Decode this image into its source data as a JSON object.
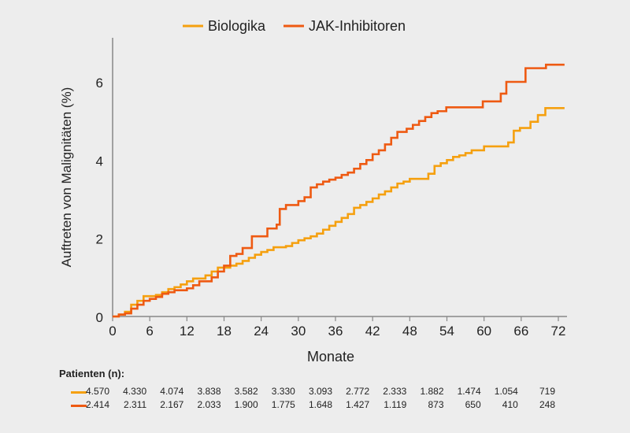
{
  "chart_data": {
    "type": "line",
    "step": true,
    "xlabel": "Monate",
    "ylabel": "Auftreten von Malignitäten (%)",
    "xlim": [
      0,
      72
    ],
    "ylim": [
      0,
      7
    ],
    "xticks": [
      0,
      6,
      12,
      18,
      24,
      30,
      36,
      42,
      48,
      54,
      60,
      66,
      72
    ],
    "yticks": [
      0,
      2,
      4,
      6
    ],
    "grid": false,
    "legend": "top-center",
    "series": [
      {
        "name": "Biologika",
        "color": "#F5A00F",
        "points": [
          [
            0,
            0
          ],
          [
            1,
            0.05
          ],
          [
            2,
            0.12
          ],
          [
            3,
            0.3
          ],
          [
            4,
            0.4
          ],
          [
            5,
            0.52
          ],
          [
            7,
            0.55
          ],
          [
            8,
            0.62
          ],
          [
            9,
            0.7
          ],
          [
            10,
            0.75
          ],
          [
            11,
            0.82
          ],
          [
            12,
            0.9
          ],
          [
            13,
            0.97
          ],
          [
            15,
            1.05
          ],
          [
            16,
            1.15
          ],
          [
            17,
            1.25
          ],
          [
            19,
            1.3
          ],
          [
            20,
            1.35
          ],
          [
            21,
            1.42
          ],
          [
            22,
            1.5
          ],
          [
            23,
            1.58
          ],
          [
            24,
            1.65
          ],
          [
            25,
            1.7
          ],
          [
            26,
            1.77
          ],
          [
            28,
            1.8
          ],
          [
            29,
            1.88
          ],
          [
            30,
            1.95
          ],
          [
            31,
            2.0
          ],
          [
            32,
            2.05
          ],
          [
            33,
            2.12
          ],
          [
            34,
            2.22
          ],
          [
            35,
            2.32
          ],
          [
            36,
            2.42
          ],
          [
            37,
            2.52
          ],
          [
            38,
            2.62
          ],
          [
            39,
            2.78
          ],
          [
            40,
            2.85
          ],
          [
            41,
            2.93
          ],
          [
            42,
            3.02
          ],
          [
            43,
            3.12
          ],
          [
            44,
            3.2
          ],
          [
            45,
            3.3
          ],
          [
            46,
            3.4
          ],
          [
            47,
            3.45
          ],
          [
            48,
            3.52
          ],
          [
            51,
            3.65
          ],
          [
            52,
            3.85
          ],
          [
            53,
            3.92
          ],
          [
            54,
            4.0
          ],
          [
            55,
            4.08
          ],
          [
            56,
            4.12
          ],
          [
            57,
            4.18
          ],
          [
            58,
            4.25
          ],
          [
            60,
            4.35
          ],
          [
            63.9,
            4.45
          ],
          [
            64.8,
            4.75
          ],
          [
            65.8,
            4.82
          ],
          [
            67.5,
            4.98
          ],
          [
            68.7,
            5.15
          ],
          [
            69.9,
            5.33
          ],
          [
            73,
            5.33
          ]
        ]
      },
      {
        "name": "JAK-Inhibitoren",
        "color": "#EE5A12",
        "points": [
          [
            0,
            0
          ],
          [
            1,
            0.05
          ],
          [
            2,
            0.08
          ],
          [
            3,
            0.2
          ],
          [
            4,
            0.3
          ],
          [
            5,
            0.4
          ],
          [
            6,
            0.45
          ],
          [
            7,
            0.5
          ],
          [
            8,
            0.58
          ],
          [
            9,
            0.62
          ],
          [
            10,
            0.67
          ],
          [
            12,
            0.72
          ],
          [
            13,
            0.8
          ],
          [
            14,
            0.9
          ],
          [
            16,
            1.0
          ],
          [
            17,
            1.15
          ],
          [
            18,
            1.3
          ],
          [
            19,
            1.55
          ],
          [
            20,
            1.6
          ],
          [
            21,
            1.75
          ],
          [
            22.5,
            2.05
          ],
          [
            25,
            2.25
          ],
          [
            26.5,
            2.35
          ],
          [
            27,
            2.75
          ],
          [
            28,
            2.85
          ],
          [
            30,
            2.95
          ],
          [
            31,
            3.05
          ],
          [
            32,
            3.3
          ],
          [
            33,
            3.38
          ],
          [
            34,
            3.45
          ],
          [
            35,
            3.5
          ],
          [
            36,
            3.55
          ],
          [
            37,
            3.62
          ],
          [
            38,
            3.68
          ],
          [
            39,
            3.78
          ],
          [
            40,
            3.9
          ],
          [
            41,
            4.0
          ],
          [
            42,
            4.15
          ],
          [
            43,
            4.25
          ],
          [
            44,
            4.4
          ],
          [
            45,
            4.57
          ],
          [
            46,
            4.72
          ],
          [
            47.5,
            4.8
          ],
          [
            48.5,
            4.9
          ],
          [
            49.5,
            5.0
          ],
          [
            50.5,
            5.1
          ],
          [
            51.5,
            5.2
          ],
          [
            52.5,
            5.25
          ],
          [
            53.9,
            5.35
          ],
          [
            59.8,
            5.5
          ],
          [
            62.7,
            5.7
          ],
          [
            63.6,
            6.0
          ],
          [
            66.7,
            6.35
          ],
          [
            70,
            6.44
          ],
          [
            73,
            6.44
          ]
        ]
      }
    ],
    "patients_table": {
      "title": "Patienten (n):",
      "rows": [
        {
          "series": "Biologika",
          "values": [
            "4.570",
            "4.330",
            "4.074",
            "3.838",
            "3.582",
            "3.330",
            "3.093",
            "2.772",
            "2.333",
            "1.882",
            "1.474",
            "1.054",
            "719"
          ]
        },
        {
          "series": "JAK-Inhibitoren",
          "values": [
            "2.414",
            "2.311",
            "2.167",
            "2.033",
            "1.900",
            "1.775",
            "1.648",
            "1.427",
            "1.119",
            "873",
            "650",
            "410",
            "248"
          ]
        }
      ]
    }
  }
}
